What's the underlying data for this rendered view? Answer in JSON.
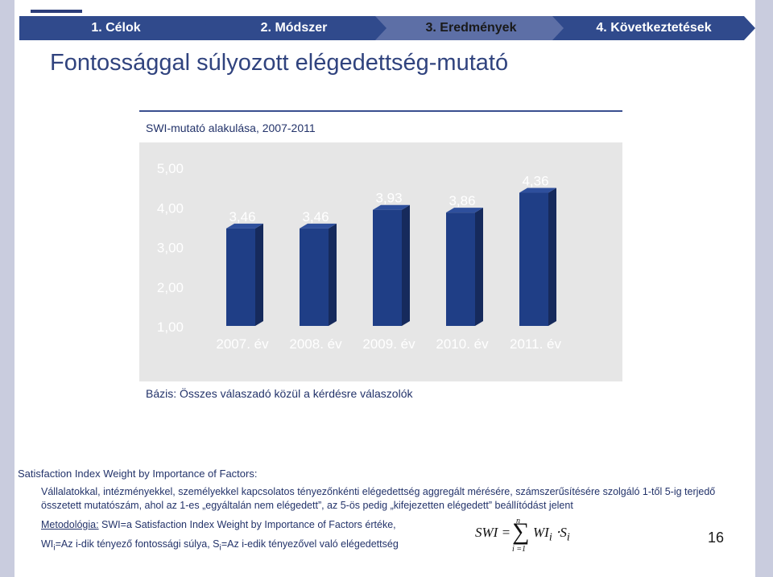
{
  "nav": {
    "items": [
      {
        "label": "1. Célok"
      },
      {
        "label": "2. Módszer"
      },
      {
        "label": "3. Eredmények"
      },
      {
        "label": "4. Következtetések"
      }
    ],
    "active_index": 2
  },
  "page": {
    "title": "Fontossággal súlyozott elégedettség-mutató",
    "number": "16"
  },
  "chart_data": {
    "type": "bar",
    "title": "SWI-mutató alakulása, 2007-2011",
    "categories": [
      "2007. év",
      "2008. év",
      "2009. év",
      "2010. év",
      "2011. év"
    ],
    "values": [
      3.46,
      3.46,
      3.93,
      3.86,
      4.36
    ],
    "value_labels": [
      "3,46",
      "3,46",
      "3,93",
      "3,86",
      "4,36"
    ],
    "y_ticks": [
      "5,00",
      "4,00",
      "3,00",
      "2,00",
      "1,00"
    ],
    "ylim": [
      1,
      5
    ],
    "grid": false,
    "legend": "none",
    "bar_color": "#1f3e86",
    "base_note": "Bázis: Összes válaszadó közül a kérdésre válaszolók"
  },
  "definition": {
    "heading": "Satisfaction Index Weight by Importance of Factors:",
    "description": "Vállalatokkal, intézményekkel, személyekkel kapcsolatos tényezőnkénti elégedettség aggregált mérésére, számszerűsítésére szolgáló 1-től 5-ig terjedő összetett mutatószám, ahol az 1-es „egyáltalán nem elégedett”, az 5-ös pedig „kifejezetten elégedett” beállítódást jelent",
    "method_label": "Metodológia:",
    "method_text": " SWI=a Satisfaction Index Weight by Importance of Factors értéke,",
    "wi_prefix": "WI",
    "wi_sub": "i",
    "wi_text": "=Az i-dik tényező fontossági súlya, S",
    "s_sub": "i",
    "s_text": "=Az i-edik tényezővel való elégedettség"
  },
  "formula": {
    "lhs": "SWI =",
    "sigma": "∑",
    "upper": "n",
    "lower": "i =1",
    "term": "WI",
    "term_sub": "i",
    "dot": " ⋅S",
    "s_sub": "i"
  }
}
